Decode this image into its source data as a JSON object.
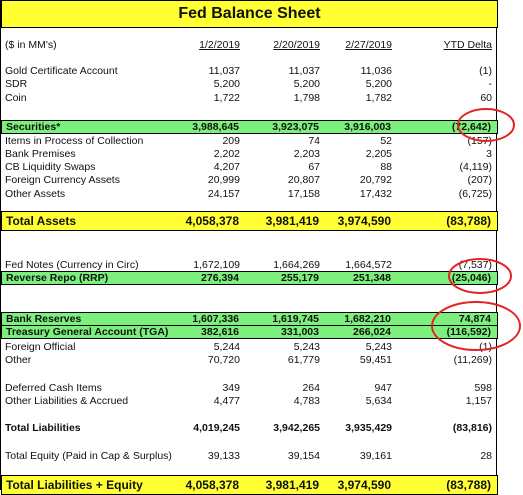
{
  "title": "Fed Balance Sheet",
  "header": [
    "($ in MM's)",
    "1/2/2019",
    "2/20/2019",
    "2/27/2019",
    "YTD Delta"
  ],
  "rows": [
    [
      "Gold Certificate Account",
      "11,037",
      "11,037",
      "11,036",
      "(1)"
    ],
    [
      "SDR",
      "5,200",
      "5,200",
      "5,200",
      "-"
    ],
    [
      "Coin",
      "1,722",
      "1,798",
      "1,782",
      "60"
    ],
    [
      "Securities*",
      "3,988,645",
      "3,923,075",
      "3,916,003",
      "(72,642)"
    ],
    [
      "Items in Process of Collection",
      "209",
      "74",
      "52",
      "(157)"
    ],
    [
      "Bank Premises",
      "2,202",
      "2,203",
      "2,205",
      "3"
    ],
    [
      "CB Liquidity Swaps",
      "4,207",
      "67",
      "88",
      "(4,119)"
    ],
    [
      "Foreign Currency Assets",
      "20,999",
      "20,807",
      "20,792",
      "(207)"
    ],
    [
      "Other Assets",
      "24,157",
      "17,158",
      "17,432",
      "(6,725)"
    ],
    [
      "Total Assets",
      "4,058,378",
      "3,981,419",
      "3,974,590",
      "(83,788)"
    ],
    [
      "Fed Notes (Currency in Circ)",
      "1,672,109",
      "1,664,269",
      "1,664,572",
      "(7,537)"
    ],
    [
      "Reverse Repo (RRP)",
      "276,394",
      "255,179",
      "251,348",
      "(25,046)"
    ],
    [
      "Bank Reserves",
      "1,607,336",
      "1,619,745",
      "1,682,210",
      "74,874"
    ],
    [
      "Treasury General Account (TGA)",
      "382,616",
      "331,003",
      "266,024",
      "(116,592)"
    ],
    [
      "Foreign Official",
      "5,244",
      "5,243",
      "5,243",
      "(1)"
    ],
    [
      "Other",
      "70,720",
      "61,779",
      "59,451",
      "(11,269)"
    ],
    [
      "Deferred Cash Items",
      "349",
      "264",
      "947",
      "598"
    ],
    [
      "Other Liabilities & Accrued",
      "4,477",
      "4,783",
      "5,634",
      "1,157"
    ],
    [
      "Total Liabilities",
      "4,019,245",
      "3,942,265",
      "3,935,429",
      "(83,816)"
    ],
    [
      "Total Equity (Paid in Cap & Surplus)",
      "39,133",
      "39,154",
      "39,161",
      "28"
    ],
    [
      "Total Liabilities + Equity",
      "4,058,378",
      "3,981,419",
      "3,974,590",
      "(83,788)"
    ]
  ]
}
